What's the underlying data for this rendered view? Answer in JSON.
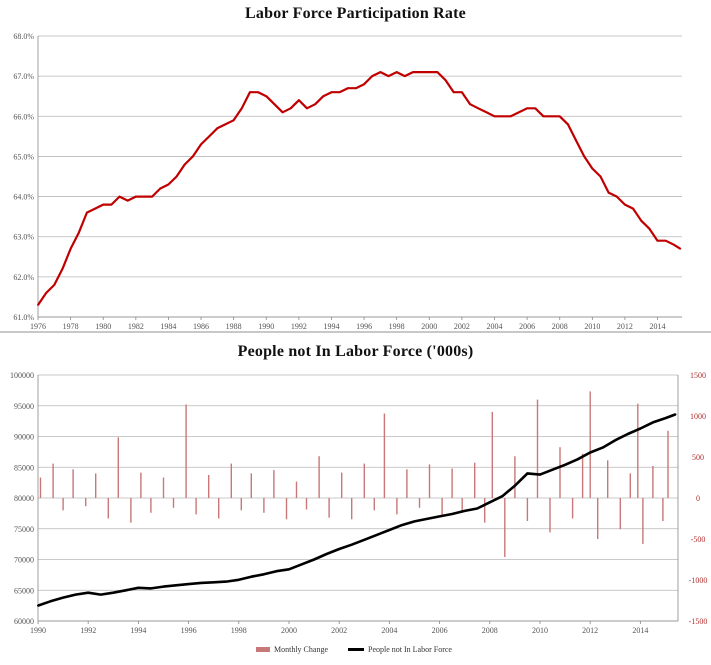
{
  "chart_data": [
    {
      "type": "line",
      "title": "Labor Force Participation Rate",
      "xlabel": "",
      "ylabel": "",
      "xlim": [
        1976,
        2015.5
      ],
      "ylim": [
        61.0,
        68.0
      ],
      "x_ticks": [
        "1976",
        "1978",
        "1980",
        "1982",
        "1984",
        "1986",
        "1988",
        "1990",
        "1992",
        "1994",
        "1996",
        "1998",
        "2000",
        "2002",
        "2004",
        "2006",
        "2008",
        "2010",
        "2012",
        "2014"
      ],
      "y_ticks": [
        "61.0%",
        "62.0%",
        "63.0%",
        "64.0%",
        "65.0%",
        "66.0%",
        "67.0%",
        "68.0%"
      ],
      "grid": "horizontal",
      "series": [
        {
          "color": "#c00000",
          "x": [
            1976,
            1976.5,
            1977,
            1977.5,
            1978,
            1978.5,
            1979,
            1979.5,
            1980,
            1980.5,
            1981,
            1981.5,
            1982,
            1982.5,
            1983,
            1983.5,
            1984,
            1984.5,
            1985,
            1985.5,
            1986,
            1986.5,
            1987,
            1987.5,
            1988,
            1988.5,
            1989,
            1989.5,
            1990,
            1990.5,
            1991,
            1991.5,
            1992,
            1992.5,
            1993,
            1993.5,
            1994,
            1994.5,
            1995,
            1995.5,
            1996,
            1996.5,
            1997,
            1997.5,
            1998,
            1998.5,
            1999,
            1999.5,
            2000,
            2000.5,
            2001,
            2001.5,
            2002,
            2002.5,
            2003,
            2003.5,
            2004,
            2004.5,
            2005,
            2005.5,
            2006,
            2006.5,
            2007,
            2007.5,
            2008,
            2008.5,
            2009,
            2009.5,
            2010,
            2010.5,
            2011,
            2011.5,
            2012,
            2012.5,
            2013,
            2013.5,
            2014,
            2014.5,
            2015,
            2015.4
          ],
          "y": [
            61.3,
            61.6,
            61.8,
            62.2,
            62.7,
            63.1,
            63.6,
            63.7,
            63.8,
            63.8,
            64.0,
            63.9,
            64.0,
            64.0,
            64.0,
            64.2,
            64.3,
            64.5,
            64.8,
            65.0,
            65.3,
            65.5,
            65.7,
            65.8,
            65.9,
            66.2,
            66.6,
            66.6,
            66.5,
            66.3,
            66.1,
            66.2,
            66.4,
            66.2,
            66.3,
            66.5,
            66.6,
            66.6,
            66.7,
            66.7,
            66.8,
            67.0,
            67.1,
            67.0,
            67.1,
            67.0,
            67.1,
            67.1,
            67.1,
            67.1,
            66.9,
            66.6,
            66.6,
            66.3,
            66.2,
            66.1,
            66.0,
            66.0,
            66.0,
            66.1,
            66.2,
            66.2,
            66.0,
            66.0,
            66.0,
            65.8,
            65.4,
            65.0,
            64.7,
            64.5,
            64.1,
            64.0,
            63.8,
            63.7,
            63.4,
            63.2,
            62.9,
            62.9,
            62.8,
            62.7
          ]
        }
      ]
    },
    {
      "type": "bar+line",
      "title": "People not In Labor Force ('000s)",
      "xlabel": "",
      "xlim": [
        1990,
        2015.5
      ],
      "x_ticks": [
        "1990",
        "1992",
        "1994",
        "1996",
        "1998",
        "2000",
        "2002",
        "2004",
        "2006",
        "2008",
        "2010",
        "2012",
        "2014"
      ],
      "ylim_left": [
        60000,
        100000
      ],
      "ylim_right": [
        -1500,
        1500
      ],
      "y_ticks_left": [
        "60000",
        "65000",
        "70000",
        "75000",
        "80000",
        "85000",
        "90000",
        "95000",
        "100000"
      ],
      "y_ticks_right": [
        "-1500",
        "-1000",
        "-500",
        "0",
        "500",
        "1000",
        "1500"
      ],
      "grid": "horizontal",
      "legend": "bottom-center",
      "series": [
        {
          "name": "Monthly Change",
          "kind": "bar",
          "axis": "right",
          "color": "#c87878",
          "x": [
            1990.1,
            1990.6,
            1991.0,
            1991.4,
            1991.9,
            1992.3,
            1992.8,
            1993.2,
            1993.7,
            1994.1,
            1994.5,
            1995.0,
            1995.4,
            1995.9,
            1996.3,
            1996.8,
            1997.2,
            1997.7,
            1998.1,
            1998.5,
            1999.0,
            1999.4,
            1999.9,
            2000.3,
            2000.7,
            2001.2,
            2001.6,
            2002.1,
            2002.5,
            2003.0,
            2003.4,
            2003.8,
            2004.3,
            2004.7,
            2005.2,
            2005.6,
            2006.1,
            2006.5,
            2006.9,
            2007.4,
            2007.8,
            2008.1,
            2008.6,
            2009.0,
            2009.5,
            2009.9,
            2010.4,
            2010.8,
            2011.3,
            2011.7,
            2012.0,
            2012.3,
            2012.7,
            2013.2,
            2013.6,
            2013.9,
            2014.1,
            2014.5,
            2014.9,
            2015.1
          ],
          "values": [
            250,
            420,
            -150,
            350,
            -100,
            300,
            -250,
            740,
            -300,
            310,
            -180,
            250,
            -120,
            1140,
            -200,
            280,
            -250,
            420,
            -150,
            300,
            -180,
            340,
            -260,
            200,
            -140,
            510,
            -240,
            310,
            -260,
            420,
            -150,
            1030,
            -200,
            350,
            -120,
            410,
            -220,
            360,
            -180,
            430,
            -300,
            1050,
            -720,
            510,
            -280,
            1200,
            -420,
            620,
            -250,
            540,
            1300,
            -500,
            460,
            -380,
            300,
            1150,
            -560,
            390,
            -280,
            820
          ]
        },
        {
          "name": "People not In Labor Force",
          "kind": "line",
          "axis": "left",
          "color": "#000000",
          "x": [
            1990,
            1990.5,
            1991,
            1991.5,
            1992,
            1992.5,
            1993,
            1993.5,
            1994,
            1994.5,
            1995,
            1995.5,
            1996,
            1996.5,
            1997,
            1997.5,
            1998,
            1998.5,
            1999,
            1999.5,
            2000,
            2000.5,
            2001,
            2001.5,
            2002,
            2002.5,
            2003,
            2003.5,
            2004,
            2004.5,
            2005,
            2005.5,
            2006,
            2006.5,
            2007,
            2007.5,
            2008,
            2008.5,
            2009,
            2009.5,
            2010,
            2010.5,
            2011,
            2011.5,
            2012,
            2012.5,
            2013,
            2013.5,
            2014,
            2014.5,
            2015,
            2015.4
          ],
          "y": [
            62500,
            63200,
            63800,
            64300,
            64600,
            64300,
            64600,
            65000,
            65400,
            65300,
            65600,
            65800,
            66000,
            66200,
            66300,
            66400,
            66700,
            67200,
            67600,
            68100,
            68400,
            69200,
            70000,
            70900,
            71700,
            72400,
            73200,
            74000,
            74800,
            75600,
            76200,
            76600,
            77000,
            77400,
            77900,
            78300,
            79300,
            80300,
            82000,
            84000,
            83800,
            84600,
            85400,
            86300,
            87400,
            88200,
            89400,
            90400,
            91300,
            92300,
            93000,
            93600
          ]
        }
      ]
    }
  ]
}
